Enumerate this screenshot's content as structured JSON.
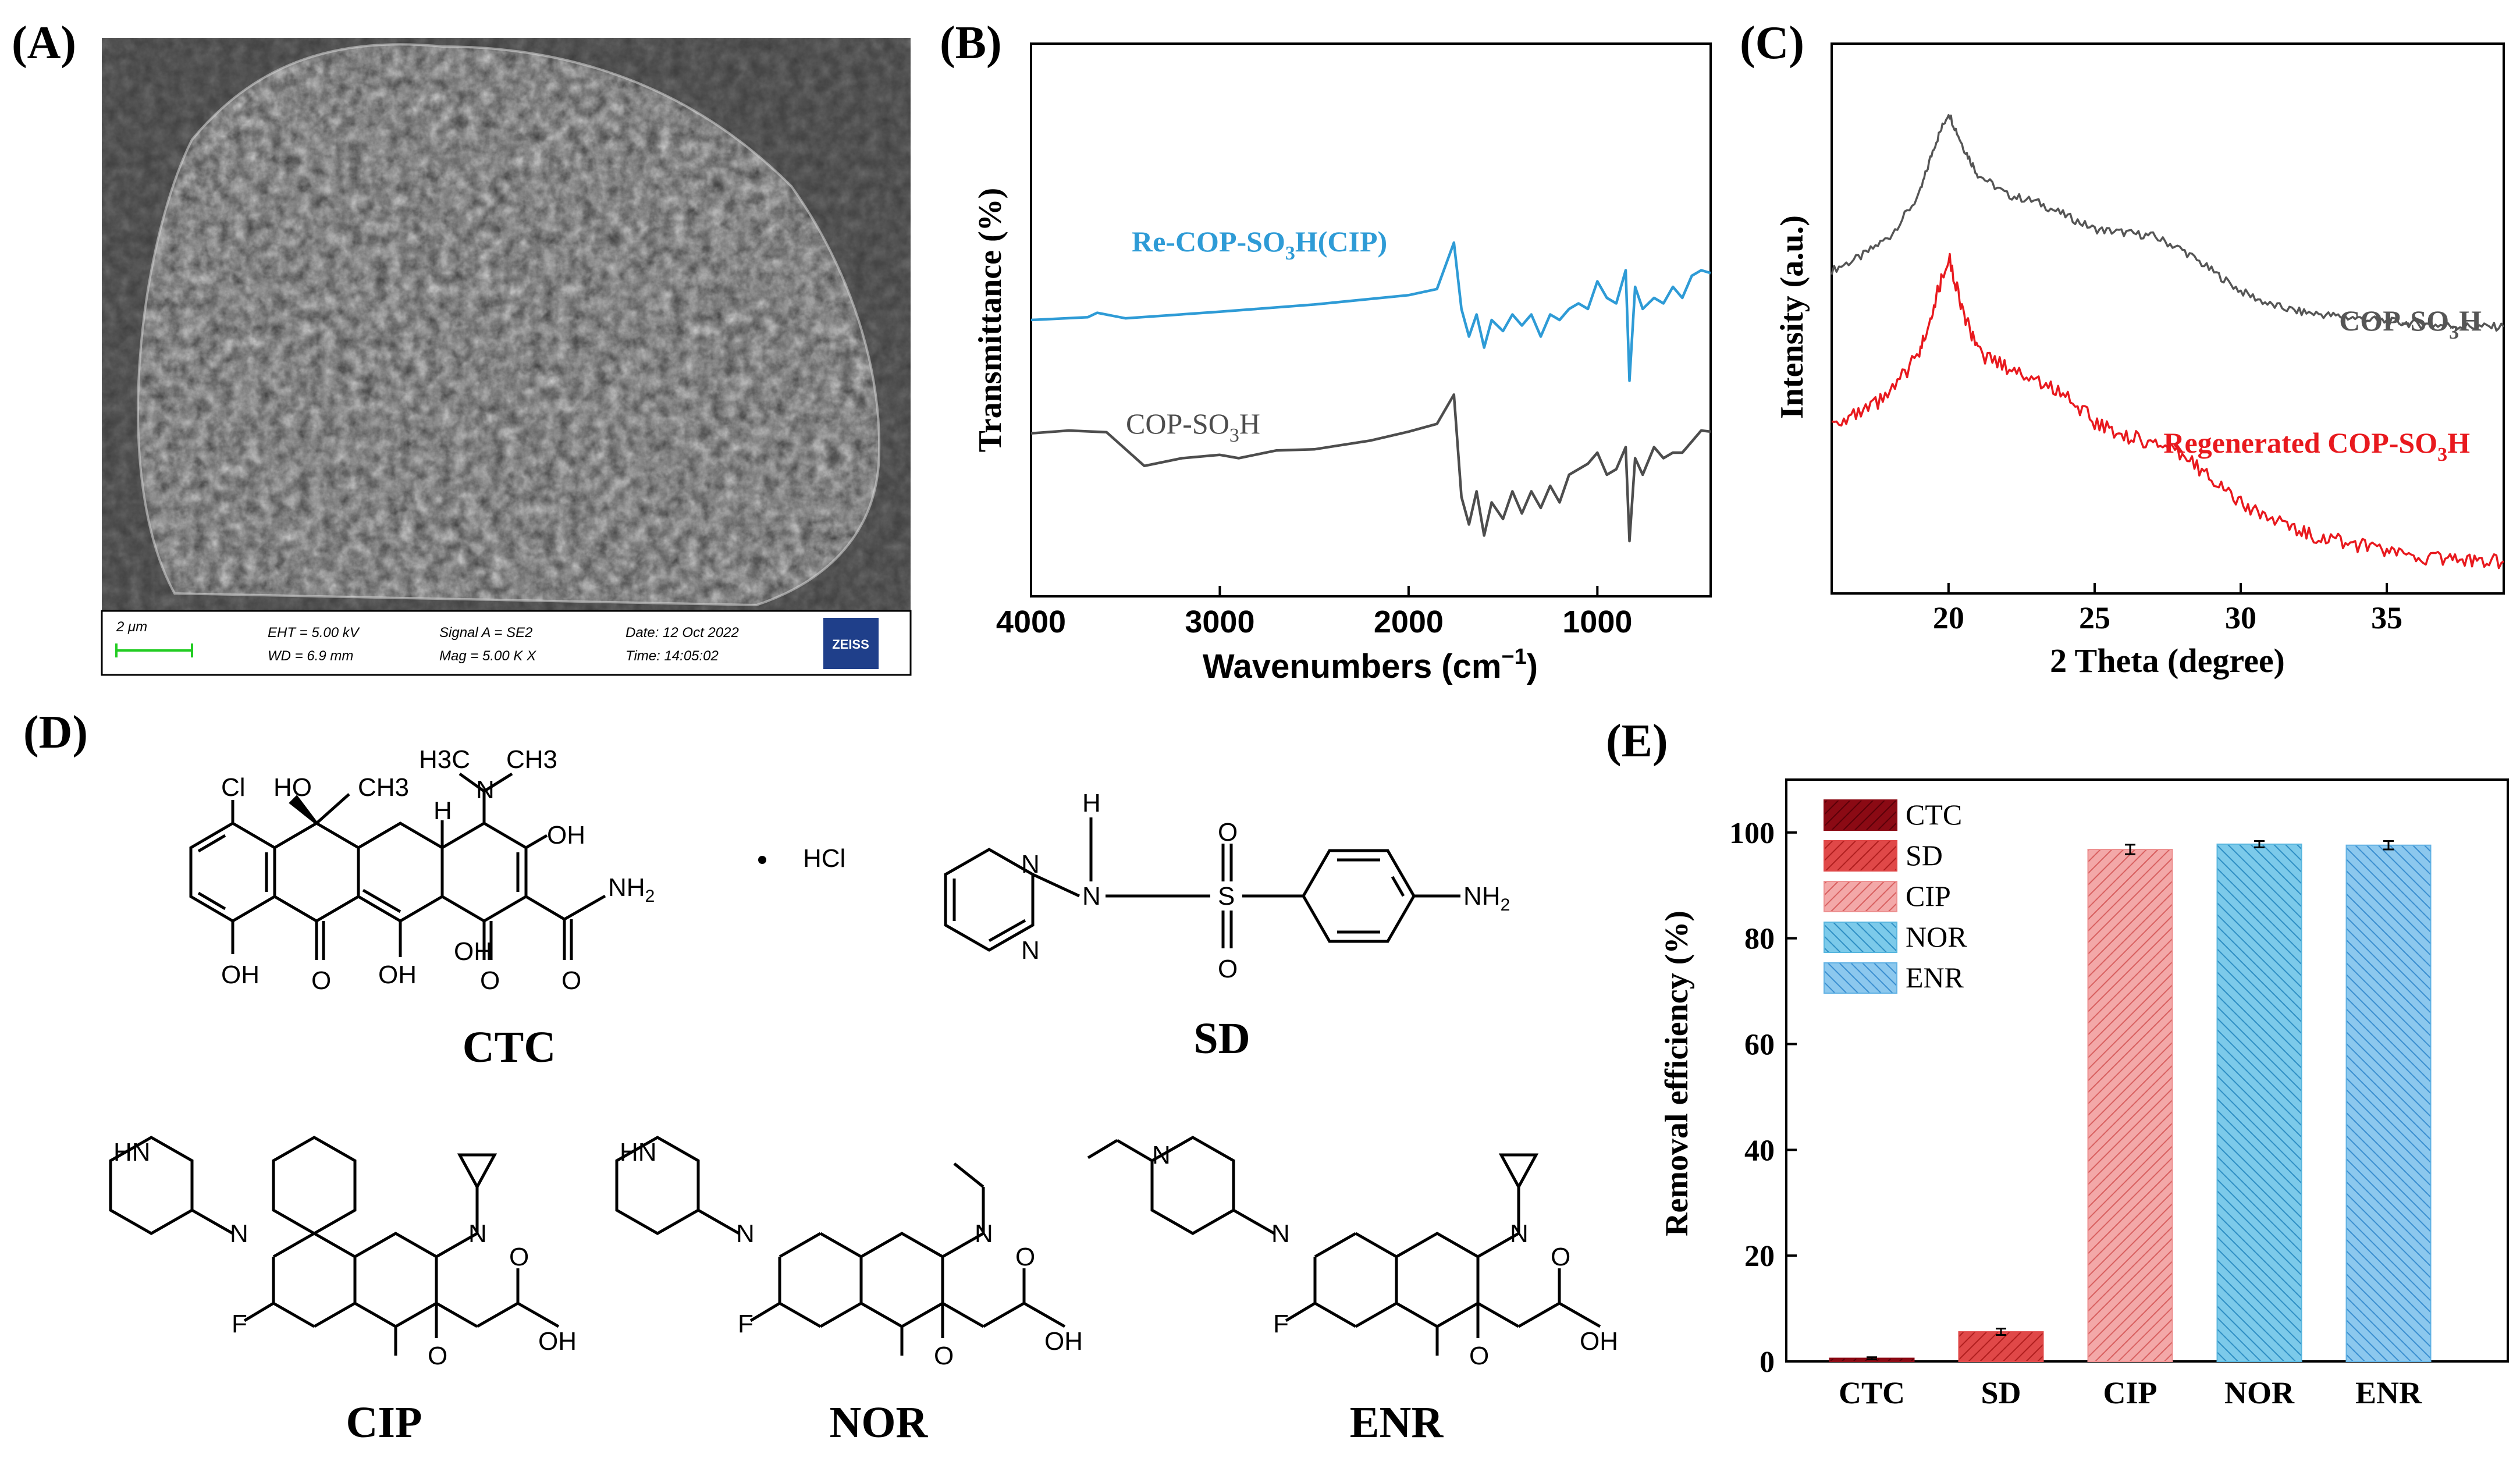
{
  "panels": {
    "A": {
      "label": "(A)",
      "sem_bar": {
        "scale": "2 μm",
        "eht": "EHT = 5.00 kV",
        "wd": "WD = 6.9 mm",
        "signal": "Signal A = SE2",
        "mag": "Mag = 5.00 K X",
        "date": "Date: 12 Oct 2022",
        "time": "Time: 14:05:02",
        "logo": "ZEISS"
      }
    },
    "B": {
      "label": "(B)"
    },
    "C": {
      "label": "(C)"
    },
    "D": {
      "label": "(D)",
      "names": [
        "CTC",
        "SD",
        "CIP",
        "NOR",
        "ENR"
      ],
      "atoms": {
        "cl": "Cl",
        "ho": "HO",
        "ch3": "CH3",
        "h": "H",
        "h3c": "H3C",
        "n": "N",
        "oh": "OH",
        "o": "O",
        "hcl": "HCl",
        "nh2": "NH",
        "sub2": "2",
        "s": "S",
        "hn": "HN",
        "f": "F",
        "dot": "•"
      }
    },
    "E": {
      "label": "(E)"
    }
  },
  "chart_data": [
    {
      "panel": "B",
      "type": "line",
      "xlabel": "Wavenumbers (cm",
      "xlabel_sup": "−1",
      "xlabel_end": ")",
      "ylabel": "Transmittance (%)",
      "xlim": [
        4000,
        400
      ],
      "x_ticks": [
        4000,
        3000,
        2000,
        1000
      ],
      "series": [
        {
          "name": "Re-COP-SO3H(CIP)",
          "label_parts": [
            "Re-COP-SO",
            "3",
            "H(CIP)"
          ],
          "color": "#2e9bd6",
          "x": [
            4000,
            3700,
            3650,
            3500,
            3000,
            2500,
            2000,
            1850,
            1760,
            1720,
            1680,
            1640,
            1600,
            1560,
            1500,
            1450,
            1400,
            1350,
            1300,
            1250,
            1200,
            1150,
            1100,
            1050,
            1000,
            950,
            900,
            850,
            830,
            800,
            760,
            700,
            650,
            600,
            550,
            500,
            450,
            400
          ],
          "y": [
            50.0,
            50.5,
            51.3,
            50.3,
            51.5,
            52.8,
            54.5,
            55.6,
            64,
            52,
            47,
            51,
            45,
            50,
            48,
            51,
            49,
            51,
            47,
            51,
            50,
            52,
            53,
            52,
            57,
            54,
            53,
            59,
            39,
            56,
            52,
            54,
            53,
            56,
            54,
            58,
            59,
            58.5
          ]
        },
        {
          "name": "COP-SO3H",
          "label_parts": [
            "COP-SO",
            "3",
            "H"
          ],
          "color": "#4d4d4d",
          "x": [
            4000,
            3800,
            3600,
            3400,
            3200,
            3000,
            2900,
            2700,
            2500,
            2200,
            2000,
            1850,
            1760,
            1720,
            1680,
            1640,
            1600,
            1560,
            1500,
            1450,
            1400,
            1350,
            1300,
            1250,
            1200,
            1150,
            1100,
            1050,
            1000,
            950,
            900,
            850,
            830,
            800,
            760,
            700,
            650,
            600,
            550,
            500,
            450,
            400
          ],
          "y": [
            29.5,
            30.0,
            29.7,
            23.6,
            25.0,
            25.6,
            25.0,
            26.4,
            26.6,
            28.2,
            29.8,
            31.2,
            36.5,
            18,
            13,
            19,
            11,
            17,
            14,
            19,
            15,
            19,
            16,
            20,
            17,
            22,
            23,
            24,
            26,
            22,
            23,
            27,
            10,
            25,
            22,
            27,
            25,
            26,
            26,
            28,
            30,
            29.8
          ]
        }
      ]
    },
    {
      "panel": "C",
      "type": "line",
      "xlabel": "2 Theta (degree)",
      "ylabel": "Intensity (a.u.)",
      "xlim": [
        16,
        39
      ],
      "x_ticks": [
        20,
        25,
        30,
        35
      ],
      "series": [
        {
          "name": "COP-SO3H",
          "label_parts": [
            "COP-SO",
            "3",
            "H"
          ],
          "color": "#555555",
          "x": [
            16,
            17,
            18,
            19,
            19.5,
            20,
            20.5,
            21,
            22,
            23,
            24,
            25,
            26,
            27,
            28,
            29,
            30,
            31,
            32,
            33,
            34,
            35,
            36,
            37,
            38,
            39
          ],
          "y": [
            42,
            44,
            47,
            53,
            60,
            65,
            60,
            56,
            53,
            52,
            50,
            48,
            47.5,
            47,
            45,
            42,
            39,
            37,
            36,
            35.5,
            35,
            34.6,
            34.2,
            34.0,
            33.8,
            33.8
          ]
        },
        {
          "name": "Regenerated COP-SO3H",
          "label_parts": [
            "Regenerated COP-SO",
            "3",
            "H"
          ],
          "color": "#e8191e",
          "x": [
            16,
            17,
            18,
            19,
            19.5,
            20,
            20.5,
            21,
            22,
            23,
            24,
            25,
            26,
            27,
            28,
            29,
            30,
            31,
            32,
            33,
            34,
            35,
            36,
            37,
            38,
            39
          ],
          "y": [
            20,
            21,
            24,
            30,
            37,
            44,
            36,
            30,
            28,
            26,
            24,
            20,
            18,
            17,
            15,
            12,
            8,
            6,
            4,
            3,
            2,
            1,
            0.4,
            0,
            -0.3,
            -0.3
          ]
        }
      ]
    },
    {
      "panel": "E",
      "type": "bar",
      "categories": [
        "CTC",
        "SD",
        "CIP",
        "NOR",
        "ENR"
      ],
      "values": [
        0.6,
        5.6,
        96.8,
        97.8,
        97.6
      ],
      "errors": [
        0.2,
        0.6,
        0.9,
        0.6,
        0.8
      ],
      "ylabel": "Removal efficiency (%)",
      "ylim": [
        0,
        110
      ],
      "y_ticks": [
        0,
        20,
        40,
        60,
        80,
        100
      ],
      "legend": [
        "CTC",
        "SD",
        "CIP",
        "NOR",
        "ENR"
      ],
      "legend_position": "top-left",
      "colors": [
        "#8b0a14",
        "#e04848",
        "#ed9090",
        "#58b6de",
        "#62b2e4"
      ]
    }
  ]
}
